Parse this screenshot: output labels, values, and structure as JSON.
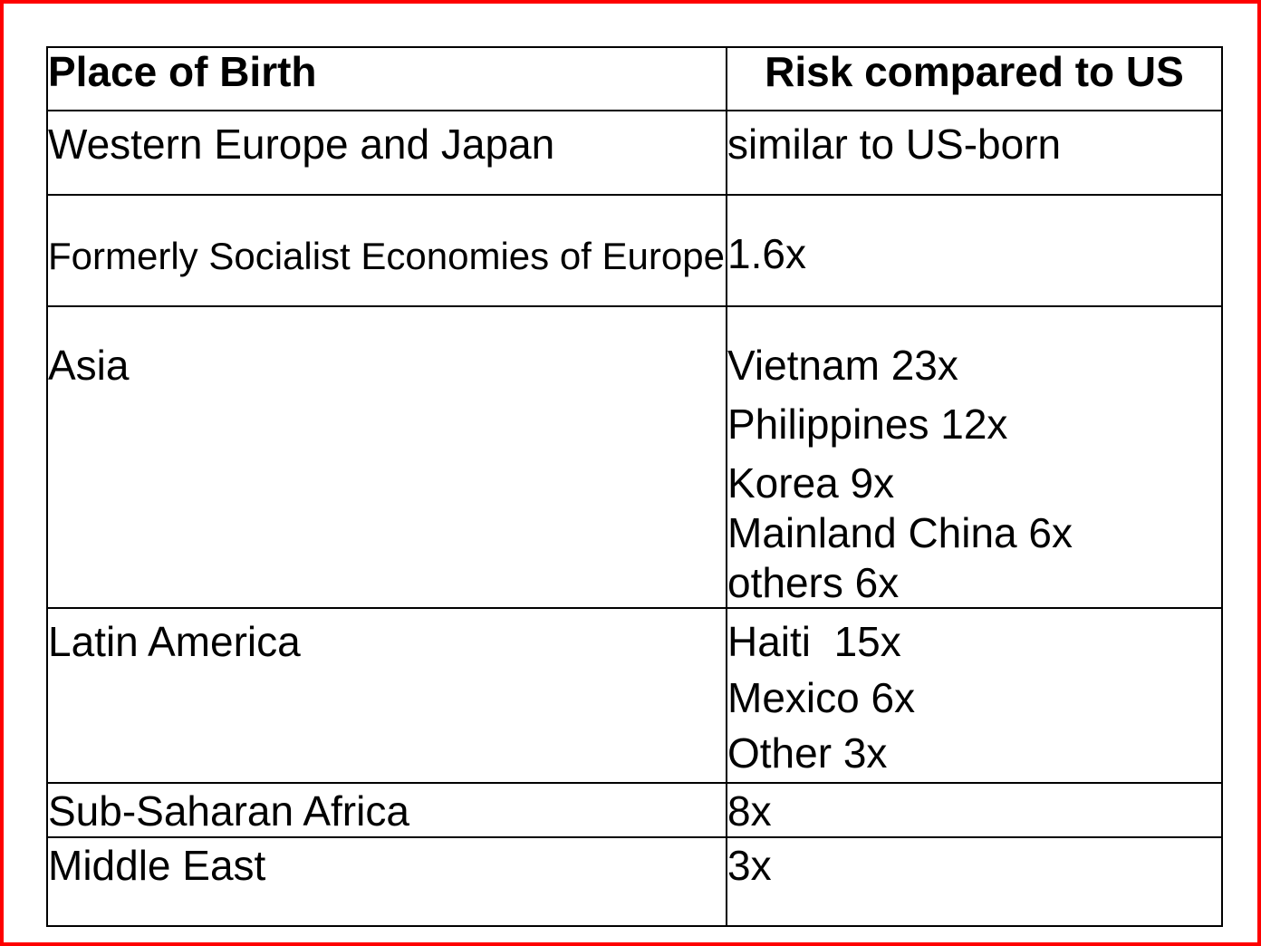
{
  "frame": {
    "border_color": "#fe0000",
    "background_color": "#ffffff",
    "text_color": "#000000"
  },
  "table": {
    "headers": {
      "place": "Place of Birth",
      "risk": "Risk compared to US"
    },
    "rows": [
      {
        "place": "Western Europe and Japan",
        "risk_lines": [
          "similar to US-born"
        ]
      },
      {
        "place": "Formerly Socialist Economies of Europe",
        "risk_lines": [
          "1.6x"
        ]
      },
      {
        "place": "Asia",
        "risk_lines": [
          "Vietnam 23x",
          "Philippines 12x",
          "Korea 9x",
          "Mainland China 6x",
          "others 6x"
        ]
      },
      {
        "place": "Latin America",
        "risk_lines": [
          "Haiti  15x",
          "Mexico 6x",
          "Other 3x"
        ]
      },
      {
        "place": "Sub-Saharan Africa",
        "risk_lines": [
          "8x"
        ]
      },
      {
        "place": "Middle East",
        "risk_lines": [
          "3x"
        ]
      }
    ]
  }
}
